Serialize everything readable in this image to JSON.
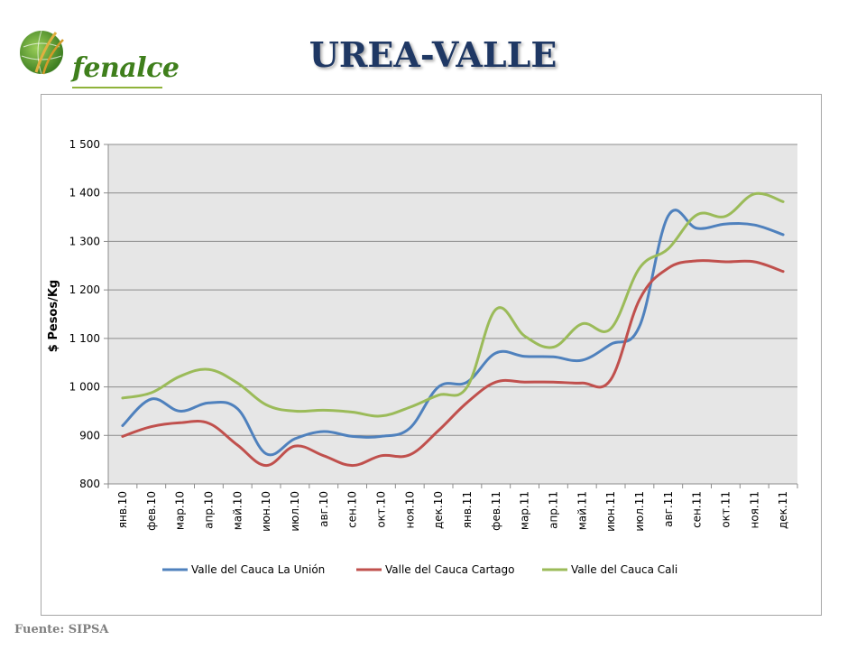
{
  "header": {
    "logo_text": "fenalce",
    "title": "UREA-VALLE"
  },
  "footer": {
    "source": "Fuente: SIPSA"
  },
  "colors": {
    "title": "#1f3864",
    "series_la_union": "#4f81bd",
    "series_cartago": "#c0504d",
    "series_cali": "#9bbb59",
    "plot_bg": "#e6e6e6",
    "gridline": "#8c8c8c"
  },
  "chart_data": {
    "type": "line",
    "title": "",
    "xlabel": "",
    "ylabel": "$ Pesos/Kg",
    "ylim": [
      800,
      1500
    ],
    "yticks": [
      800,
      900,
      1000,
      1100,
      1200,
      1300,
      1400,
      1500
    ],
    "ytick_labels": [
      "800",
      "900",
      "1 000",
      "1 100",
      "1 200",
      "1 300",
      "1 400",
      "1 500"
    ],
    "grid": true,
    "legend_position": "bottom",
    "categories": [
      "янв.10",
      "фев.10",
      "мар.10",
      "апр.10",
      "май.10",
      "июн.10",
      "июл.10",
      "авг.10",
      "сен.10",
      "окт.10",
      "ноя.10",
      "дек.10",
      "янв.11",
      "фев.11",
      "мар.11",
      "апр.11",
      "май.11",
      "июн.11",
      "июл.11",
      "авг.11",
      "сен.11",
      "окт.11",
      "ноя.11",
      "дек.11"
    ],
    "series": [
      {
        "name": "Valle del Cauca La Unión",
        "color": "#4f81bd",
        "values": [
          920,
          975,
          950,
          967,
          955,
          862,
          893,
          908,
          898,
          898,
          915,
          1000,
          1010,
          1070,
          1063,
          1062,
          1055,
          1088,
          1125,
          1353,
          1327,
          1336,
          1334,
          1314
        ]
      },
      {
        "name": "Valle del Cauca Cartago",
        "color": "#c0504d",
        "values": [
          898,
          918,
          926,
          925,
          880,
          838,
          878,
          858,
          838,
          858,
          860,
          910,
          968,
          1010,
          1010,
          1010,
          1008,
          1015,
          1180,
          1245,
          1260,
          1258,
          1258,
          1238
        ]
      },
      {
        "name": "Valle del Cauca Cali",
        "color": "#9bbb59",
        "values": [
          977,
          988,
          1022,
          1036,
          1008,
          963,
          950,
          952,
          948,
          940,
          958,
          983,
          1000,
          1160,
          1105,
          1082,
          1130,
          1120,
          1245,
          1285,
          1355,
          1352,
          1398,
          1382
        ]
      }
    ]
  }
}
